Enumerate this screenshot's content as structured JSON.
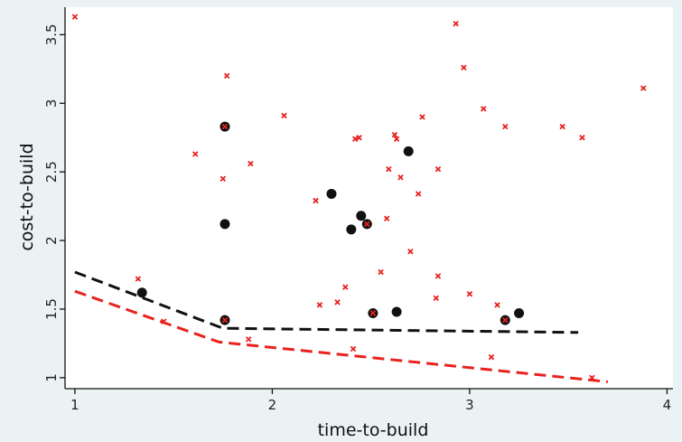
{
  "chart_data": {
    "type": "scatter",
    "xlabel": "time-to-build",
    "ylabel": "cost-to-build",
    "xlim": [
      0.95,
      4.03
    ],
    "ylim": [
      0.92,
      3.7
    ],
    "xticks": [
      1,
      2,
      3,
      4
    ],
    "xtick_labels": [
      "1",
      "2",
      "3",
      "4"
    ],
    "yticks": [
      1,
      1.5,
      2,
      2.5,
      3,
      3.5
    ],
    "ytick_labels": [
      "1",
      "1.5",
      "2",
      "2.5",
      "3",
      "3.5"
    ],
    "grid": false,
    "legend": "none",
    "colors": {
      "plot_background": "#ffffff",
      "outer_background": "#eaf2f3",
      "red": "#e8221f",
      "black": "#111111"
    },
    "series": [
      {
        "marker": "x",
        "color": "#e8221f",
        "points": [
          [
            1.0,
            3.63
          ],
          [
            1.32,
            1.72
          ],
          [
            1.45,
            1.41
          ],
          [
            1.61,
            2.63
          ],
          [
            1.75,
            2.45
          ],
          [
            1.77,
            3.2
          ],
          [
            1.89,
            2.56
          ],
          [
            1.76,
            2.83
          ],
          [
            1.76,
            1.42
          ],
          [
            1.88,
            1.28
          ],
          [
            2.06,
            2.91
          ],
          [
            2.22,
            2.29
          ],
          [
            2.24,
            1.53
          ],
          [
            2.33,
            1.55
          ],
          [
            2.37,
            1.66
          ],
          [
            2.42,
            2.74
          ],
          [
            2.44,
            2.75
          ],
          [
            2.41,
            1.21
          ],
          [
            2.48,
            2.12
          ],
          [
            2.51,
            1.47
          ],
          [
            2.55,
            1.77
          ],
          [
            2.58,
            2.16
          ],
          [
            2.59,
            2.52
          ],
          [
            2.62,
            2.77
          ],
          [
            2.63,
            2.74
          ],
          [
            2.65,
            2.46
          ],
          [
            2.7,
            1.92
          ],
          [
            2.74,
            2.34
          ],
          [
            2.76,
            2.9
          ],
          [
            2.83,
            1.58
          ],
          [
            2.84,
            1.74
          ],
          [
            2.84,
            2.52
          ],
          [
            2.93,
            3.58
          ],
          [
            2.97,
            3.26
          ],
          [
            3.0,
            1.61
          ],
          [
            3.07,
            2.96
          ],
          [
            3.11,
            1.15
          ],
          [
            3.14,
            1.53
          ],
          [
            3.18,
            2.83
          ],
          [
            3.18,
            1.42
          ],
          [
            3.47,
            2.83
          ],
          [
            3.57,
            2.75
          ],
          [
            3.62,
            1.0
          ],
          [
            3.88,
            3.11
          ]
        ]
      },
      {
        "marker": "dot",
        "color": "#111111",
        "points": [
          [
            1.34,
            1.62
          ],
          [
            1.76,
            2.83
          ],
          [
            1.76,
            2.12
          ],
          [
            1.76,
            1.42
          ],
          [
            2.3,
            2.34
          ],
          [
            2.4,
            2.08
          ],
          [
            2.45,
            2.18
          ],
          [
            2.48,
            2.12
          ],
          [
            2.51,
            1.47
          ],
          [
            2.63,
            1.48
          ],
          [
            2.69,
            2.65
          ],
          [
            3.18,
            1.42
          ],
          [
            3.25,
            1.47
          ]
        ]
      }
    ],
    "lines": [
      {
        "style": "dashed",
        "color": "#111111",
        "points": [
          [
            1.0,
            1.77
          ],
          [
            1.75,
            1.36
          ],
          [
            3.55,
            1.33
          ]
        ]
      },
      {
        "style": "dashed",
        "color": "#e8221f",
        "points": [
          [
            1.0,
            1.63
          ],
          [
            1.73,
            1.26
          ],
          [
            3.7,
            0.97
          ]
        ]
      }
    ]
  }
}
